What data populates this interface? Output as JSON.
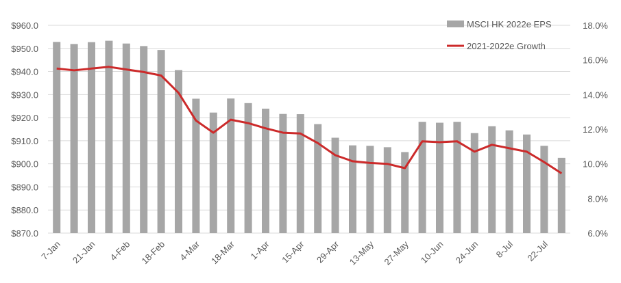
{
  "chart_data": {
    "type": "bar",
    "categories": [
      "7-Jan",
      "14-Jan",
      "21-Jan",
      "28-Jan",
      "4-Feb",
      "11-Feb",
      "18-Feb",
      "25-Feb",
      "4-Mar",
      "11-Mar",
      "18-Mar",
      "25-Mar",
      "1-Apr",
      "8-Apr",
      "15-Apr",
      "22-Apr",
      "29-Apr",
      "6-May",
      "13-May",
      "20-May",
      "27-May",
      "3-Jun",
      "10-Jun",
      "17-Jun",
      "24-Jun",
      "1-Jul",
      "8-Jul",
      "15-Jul",
      "22-Jul",
      "29-Jul"
    ],
    "x_tick_labels": [
      "7-Jan",
      "21-Jan",
      "4-Feb",
      "18-Feb",
      "4-Mar",
      "18-Mar",
      "1-Apr",
      "15-Apr",
      "29-Apr",
      "13-May",
      "27-May",
      "10-Jun",
      "24-Jun",
      "8-Jul",
      "22-Jul"
    ],
    "series": [
      {
        "name": "MSCI HK 2022e EPS",
        "type": "bar",
        "axis": "left",
        "color": "#a6a6a6",
        "values": [
          952.8,
          951.9,
          952.7,
          953.3,
          952.1,
          951.0,
          949.3,
          940.6,
          928.2,
          922.2,
          928.3,
          926.3,
          923.9,
          921.6,
          921.5,
          917.2,
          911.3,
          908.0,
          907.8,
          907.2,
          905.1,
          918.2,
          917.8,
          918.2,
          913.3,
          916.3,
          914.5,
          912.7,
          907.8,
          902.6
        ]
      },
      {
        "name": "2021-2022e Growth",
        "type": "line",
        "axis": "right",
        "color": "#cc2a2a",
        "values": [
          15.5,
          15.4,
          15.5,
          15.6,
          15.45,
          15.3,
          15.1,
          14.1,
          12.5,
          11.8,
          12.55,
          12.35,
          12.05,
          11.8,
          11.75,
          11.2,
          10.5,
          10.15,
          10.05,
          10.0,
          9.75,
          11.3,
          11.25,
          11.3,
          10.7,
          11.1,
          10.9,
          10.7,
          10.1,
          9.45
        ]
      }
    ],
    "left_axis": {
      "ylim": [
        870,
        960
      ],
      "ticks": [
        "$870.0",
        "$880.0",
        "$890.0",
        "$900.0",
        "$910.0",
        "$920.0",
        "$930.0",
        "$940.0",
        "$950.0",
        "$960.0"
      ]
    },
    "right_axis": {
      "ylim": [
        6,
        18
      ],
      "ticks": [
        "6.0%",
        "8.0%",
        "10.0%",
        "12.0%",
        "14.0%",
        "16.0%",
        "18.0%"
      ]
    },
    "grid": true,
    "legend_position": "top-right",
    "colors": {
      "gridline": "#d9d9d9",
      "text": "#595959"
    }
  }
}
